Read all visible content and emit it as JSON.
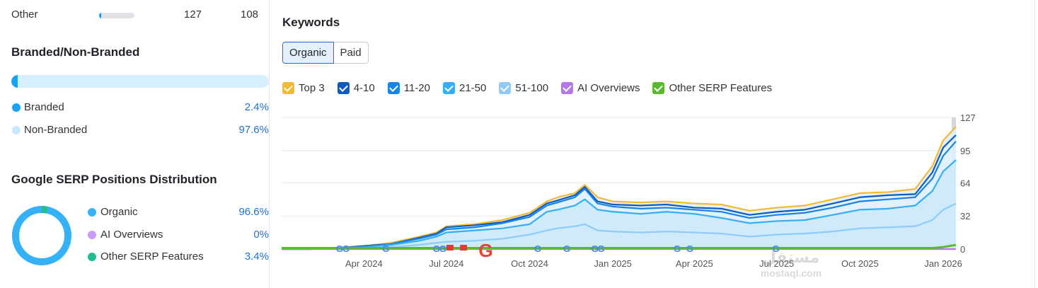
{
  "left": {
    "other_row": {
      "label": "Other",
      "value1": "127",
      "value2": "108",
      "bar_fraction": 0.05
    },
    "branded": {
      "title": "Branded/Non-Branded",
      "branded_fraction": 0.024,
      "items": [
        {
          "label": "Branded",
          "value": "2.4%",
          "color": "#1aa3f5"
        },
        {
          "label": "Non-Branded",
          "value": "97.6%",
          "color": "#c9e8fc"
        }
      ]
    },
    "serp": {
      "title": "Google SERP Positions Distribution",
      "items": [
        {
          "label": "Organic",
          "value": "96.6%",
          "color": "#35b2f7",
          "fraction": 0.966
        },
        {
          "label": "AI Overviews",
          "value": "0%",
          "color": "#c89cf2",
          "fraction": 0.0
        },
        {
          "label": "Other SERP Features",
          "value": "3.4%",
          "color": "#1fbf8f",
          "fraction": 0.034
        }
      ]
    }
  },
  "right": {
    "title": "Keywords",
    "tabs": [
      {
        "label": "Organic",
        "active": true
      },
      {
        "label": "Paid",
        "active": false
      }
    ],
    "filters": [
      {
        "label": "Top 3",
        "color": "#f5b833"
      },
      {
        "label": "4-10",
        "color": "#0b5cbf"
      },
      {
        "label": "11-20",
        "color": "#1784e6"
      },
      {
        "label": "21-50",
        "color": "#36aef5"
      },
      {
        "label": "51-100",
        "color": "#8fcbfa"
      },
      {
        "label": "AI Overviews",
        "color": "#b478ee"
      },
      {
        "label": "Other SERP Features",
        "color": "#5cb82c"
      }
    ]
  },
  "watermark": {
    "arabic": "مستقل",
    "latin": "mostaql.com"
  },
  "chart_data": {
    "type": "area",
    "x": [
      "2024-01-01",
      "2024-02-01",
      "2024-03-01",
      "2024-04-01",
      "2024-05-01",
      "2024-06-01",
      "2024-06-20",
      "2024-07-01",
      "2024-08-01",
      "2024-09-01",
      "2024-10-01",
      "2024-10-20",
      "2024-11-01",
      "2024-11-20",
      "2024-12-01",
      "2024-12-15",
      "2025-01-01",
      "2025-02-01",
      "2025-03-01",
      "2025-04-01",
      "2025-05-01",
      "2025-06-01",
      "2025-07-01",
      "2025-08-01",
      "2025-09-01",
      "2025-10-01",
      "2025-11-01",
      "2025-12-01",
      "2025-12-20",
      "2026-01-01",
      "2026-01-15"
    ],
    "xlabels": [
      "Apr 2024",
      "Jul 2024",
      "Oct 2024",
      "Jan 2025",
      "Apr 2025",
      "Jul 2025",
      "Oct 2025",
      "Jan 2026"
    ],
    "xlabel_dates": [
      "2024-04-01",
      "2024-07-01",
      "2024-10-01",
      "2025-01-01",
      "2025-04-01",
      "2025-07-01",
      "2025-10-01",
      "2026-01-01"
    ],
    "y_ticks": [
      0,
      32,
      64,
      95,
      127
    ],
    "ylim": [
      0,
      127
    ],
    "series": [
      {
        "name": "Top 3",
        "color": "#f5b833",
        "values": [
          0,
          0,
          1,
          3,
          6,
          12,
          16,
          22,
          24,
          28,
          35,
          46,
          50,
          54,
          62,
          50,
          46,
          45,
          46,
          44,
          43,
          37,
          40,
          42,
          48,
          54,
          55,
          58,
          80,
          105,
          118
        ]
      },
      {
        "name": "4-10",
        "color": "#0b5cbf",
        "values": [
          0,
          0,
          1,
          3,
          5,
          11,
          15,
          21,
          23,
          26,
          33,
          44,
          47,
          52,
          60,
          46,
          43,
          42,
          43,
          40,
          39,
          33,
          36,
          38,
          44,
          50,
          52,
          53,
          74,
          98,
          110
        ]
      },
      {
        "name": "11-20",
        "color": "#1784e6",
        "values": [
          0,
          0,
          1,
          2,
          5,
          10,
          14,
          19,
          21,
          25,
          31,
          42,
          45,
          50,
          58,
          44,
          41,
          39,
          40,
          38,
          36,
          30,
          33,
          35,
          40,
          46,
          48,
          50,
          68,
          90,
          104
        ]
      },
      {
        "name": "21-50",
        "color": "#36aef5",
        "values": [
          0,
          0,
          1,
          2,
          4,
          8,
          12,
          16,
          18,
          20,
          24,
          36,
          38,
          42,
          48,
          38,
          36,
          34,
          36,
          34,
          30,
          25,
          27,
          28,
          33,
          38,
          39,
          42,
          56,
          75,
          86
        ]
      },
      {
        "name": "51-100",
        "color": "#8fcbfa",
        "values": [
          0,
          0,
          0,
          1,
          2,
          4,
          6,
          7,
          8,
          10,
          14,
          18,
          20,
          22,
          24,
          18,
          17,
          16,
          17,
          16,
          15,
          12,
          14,
          15,
          17,
          20,
          21,
          22,
          28,
          38,
          44
        ]
      },
      {
        "name": "AI Overviews",
        "color": "#b478ee",
        "values": [
          0,
          0,
          0,
          0,
          0,
          0,
          0,
          0,
          0,
          0,
          0,
          0,
          0,
          0,
          0,
          0,
          0,
          0,
          0,
          0,
          0,
          0,
          0,
          0,
          0,
          0,
          0,
          0,
          0,
          0,
          0
        ]
      },
      {
        "name": "Other SERP Features",
        "color": "#5cb82c",
        "values": [
          1,
          1,
          1,
          1,
          1,
          1,
          1,
          1,
          1,
          1,
          1,
          1,
          1,
          1,
          1,
          1,
          1,
          1,
          1,
          1,
          1,
          1,
          1,
          1,
          1,
          1,
          1,
          1,
          1,
          2,
          4
        ]
      }
    ],
    "google_update_dates": [
      "2024-03-05",
      "2024-03-12",
      "2024-04-25",
      "2024-06-20",
      "2024-06-27",
      "2024-10-10",
      "2024-11-11",
      "2024-12-12",
      "2024-12-19",
      "2025-03-13",
      "2025-03-27",
      "2025-06-30"
    ],
    "event_flag_dates": [
      "2024-07-05",
      "2024-07-20"
    ],
    "highlighted_update_date": "2024-08-15"
  }
}
